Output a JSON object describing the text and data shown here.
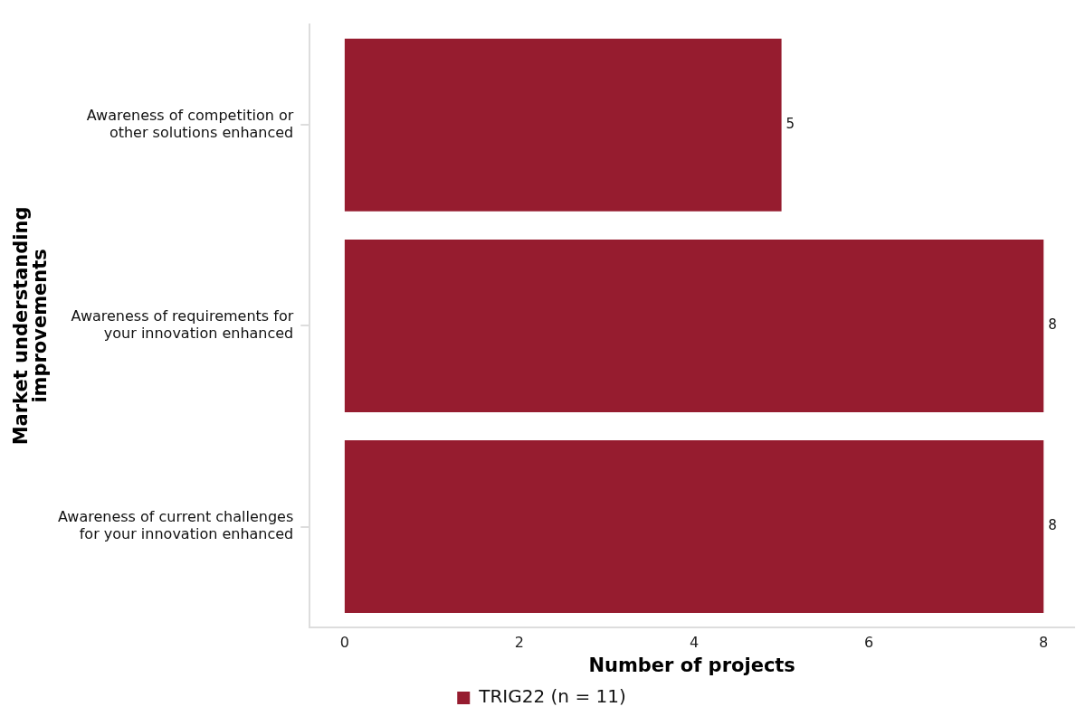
{
  "chart_data": {
    "type": "bar",
    "orientation": "horizontal",
    "xlabel": "Number of projects",
    "ylabel": "Market understanding\nimprovements",
    "categories": [
      "Awareness of competition or\nother solutions enhanced",
      "Awareness of requirements for\nyour innovation enhanced",
      "Awareness of current challenges\nfor your innovation enhanced"
    ],
    "series": [
      {
        "name": "TRIG22 (n = 11)",
        "color": "#961c2f",
        "values": [
          5,
          8,
          8
        ]
      }
    ],
    "xlim": [
      -0.4,
      8.35
    ],
    "xticks": [
      0,
      2,
      4,
      6,
      8
    ],
    "data_labels": true,
    "legend": "bottom",
    "grid": false
  }
}
